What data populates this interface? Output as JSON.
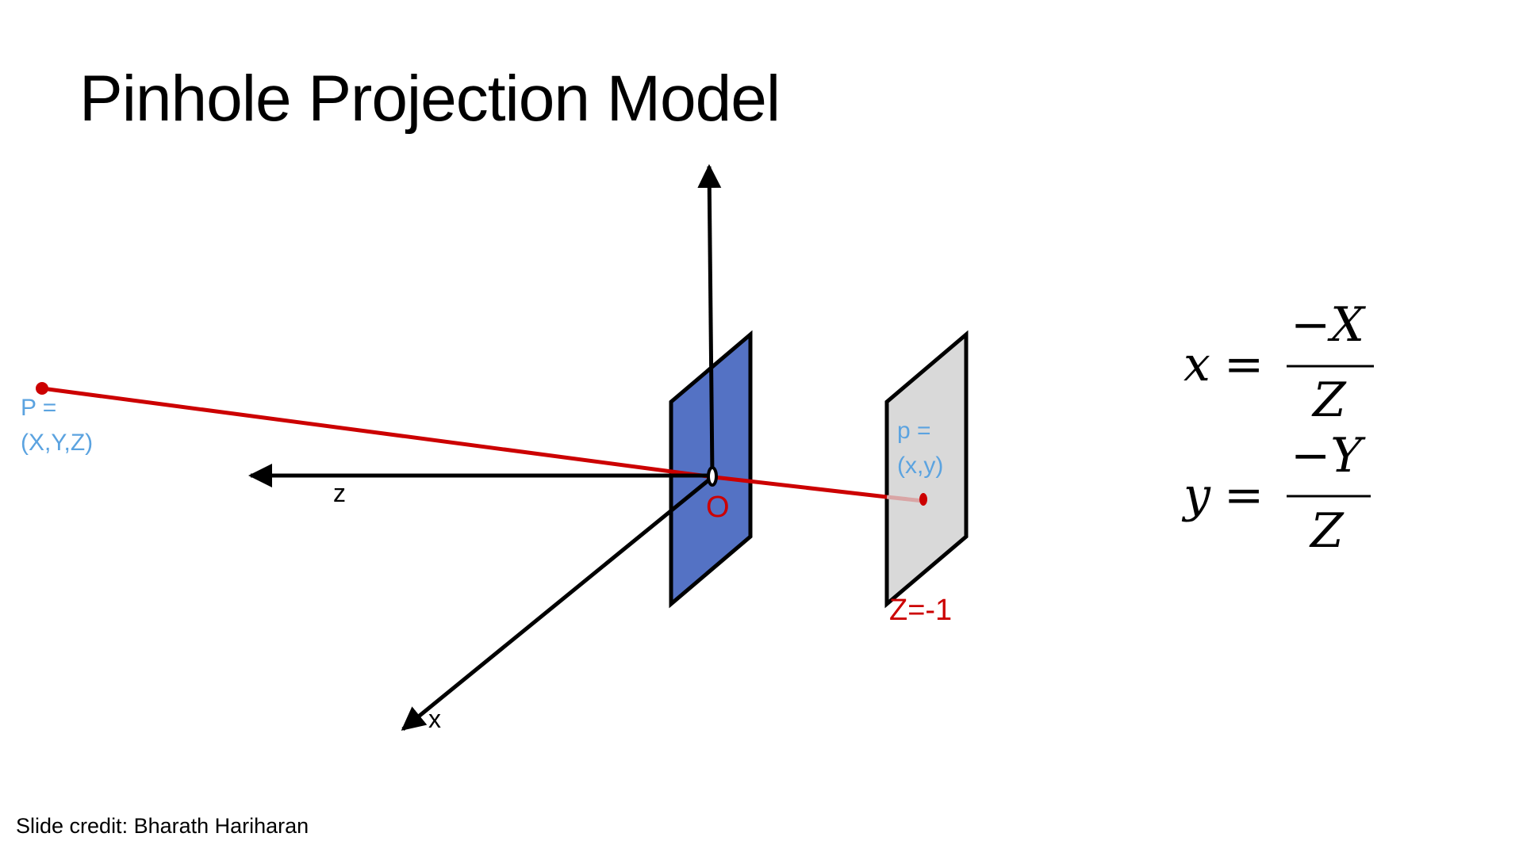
{
  "slide": {
    "title": "Pinhole Projection Model",
    "credit": "Slide credit: Bharath Hariharan"
  },
  "diagram": {
    "axis_labels": {
      "z": "z",
      "x": "x"
    },
    "origin_label": "O",
    "world_point": {
      "label_line1": "P =",
      "label_line2": "(X,Y,Z)"
    },
    "image_point": {
      "label_line1": "p =",
      "label_line2": "(x,y)"
    },
    "image_plane_label": "Z=-1",
    "colors": {
      "ray": "#cc0000",
      "ray_behind": "#d9a5a5",
      "pinhole_plane": "#5472c4",
      "image_plane": "#d9d9d9",
      "point_label": "#5ba3e0",
      "axis": "#000000",
      "red_label": "#cc0000"
    }
  },
  "equations": {
    "x": {
      "lhs": "x",
      "equals": "=",
      "numerator": "−X",
      "denominator": "Z"
    },
    "y": {
      "lhs": "y",
      "equals": "=",
      "numerator": "−Y",
      "denominator": "Z"
    }
  }
}
